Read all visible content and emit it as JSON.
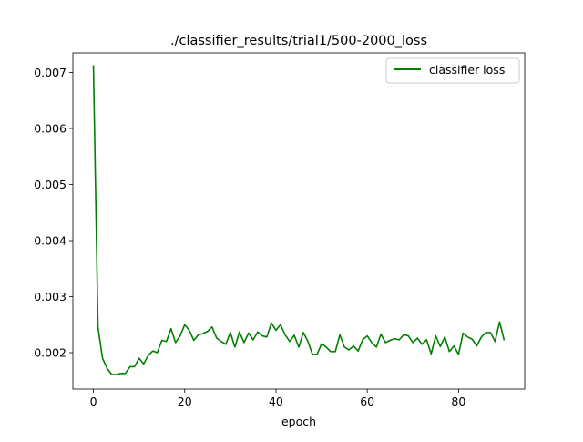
{
  "chart_data": {
    "type": "line",
    "title": "./classifier_results/trial1/500-2000_loss",
    "xlabel": "epoch",
    "ylabel": "",
    "xlim": [
      -4.5,
      94.5
    ],
    "ylim": [
      0.00135,
      0.00735
    ],
    "xticks": [
      0,
      20,
      40,
      60,
      80
    ],
    "xtick_labels": [
      "0",
      "20",
      "40",
      "60",
      "80"
    ],
    "yticks": [
      0.002,
      0.003,
      0.004,
      0.005,
      0.006,
      0.007
    ],
    "ytick_labels": [
      "0.002",
      "0.003",
      "0.004",
      "0.005",
      "0.006",
      "0.007"
    ],
    "grid": false,
    "legend_position": "top-right",
    "series": [
      {
        "name": "classifier loss",
        "color": "#008000",
        "x": [
          0,
          1,
          2,
          3,
          4,
          5,
          6,
          7,
          8,
          9,
          10,
          11,
          12,
          13,
          14,
          15,
          16,
          17,
          18,
          19,
          20,
          21,
          22,
          23,
          24,
          25,
          26,
          27,
          28,
          29,
          30,
          31,
          32,
          33,
          34,
          35,
          36,
          37,
          38,
          39,
          40,
          41,
          42,
          43,
          44,
          45,
          46,
          47,
          48,
          49,
          50,
          51,
          52,
          53,
          54,
          55,
          56,
          57,
          58,
          59,
          60,
          61,
          62,
          63,
          64,
          65,
          66,
          67,
          68,
          69,
          70,
          71,
          72,
          73,
          74,
          75,
          76,
          77,
          78,
          79,
          80,
          81,
          82,
          83,
          84,
          85,
          86,
          87,
          88,
          89,
          90
        ],
        "values": [
          0.00713,
          0.00245,
          0.0019,
          0.00172,
          0.00161,
          0.00161,
          0.00163,
          0.00163,
          0.00175,
          0.00175,
          0.0019,
          0.0018,
          0.00195,
          0.00203,
          0.002,
          0.00222,
          0.0022,
          0.00243,
          0.00218,
          0.0023,
          0.0025,
          0.0024,
          0.00222,
          0.00232,
          0.00234,
          0.00238,
          0.00246,
          0.00226,
          0.0022,
          0.00215,
          0.00236,
          0.0021,
          0.00237,
          0.00218,
          0.00235,
          0.00223,
          0.00237,
          0.0023,
          0.00228,
          0.00253,
          0.0024,
          0.0025,
          0.00232,
          0.0022,
          0.00231,
          0.0021,
          0.00236,
          0.0022,
          0.00197,
          0.00197,
          0.00216,
          0.0021,
          0.00202,
          0.00202,
          0.00232,
          0.0021,
          0.00205,
          0.00212,
          0.00203,
          0.00223,
          0.0023,
          0.00218,
          0.0021,
          0.00233,
          0.00218,
          0.00222,
          0.00225,
          0.00223,
          0.00232,
          0.0023,
          0.00218,
          0.00226,
          0.00215,
          0.00223,
          0.00198,
          0.0023,
          0.00211,
          0.00228,
          0.00202,
          0.00212,
          0.00197,
          0.00235,
          0.00228,
          0.00224,
          0.00212,
          0.00228,
          0.00236,
          0.00236,
          0.0022,
          0.00255,
          0.00222
        ]
      }
    ]
  }
}
